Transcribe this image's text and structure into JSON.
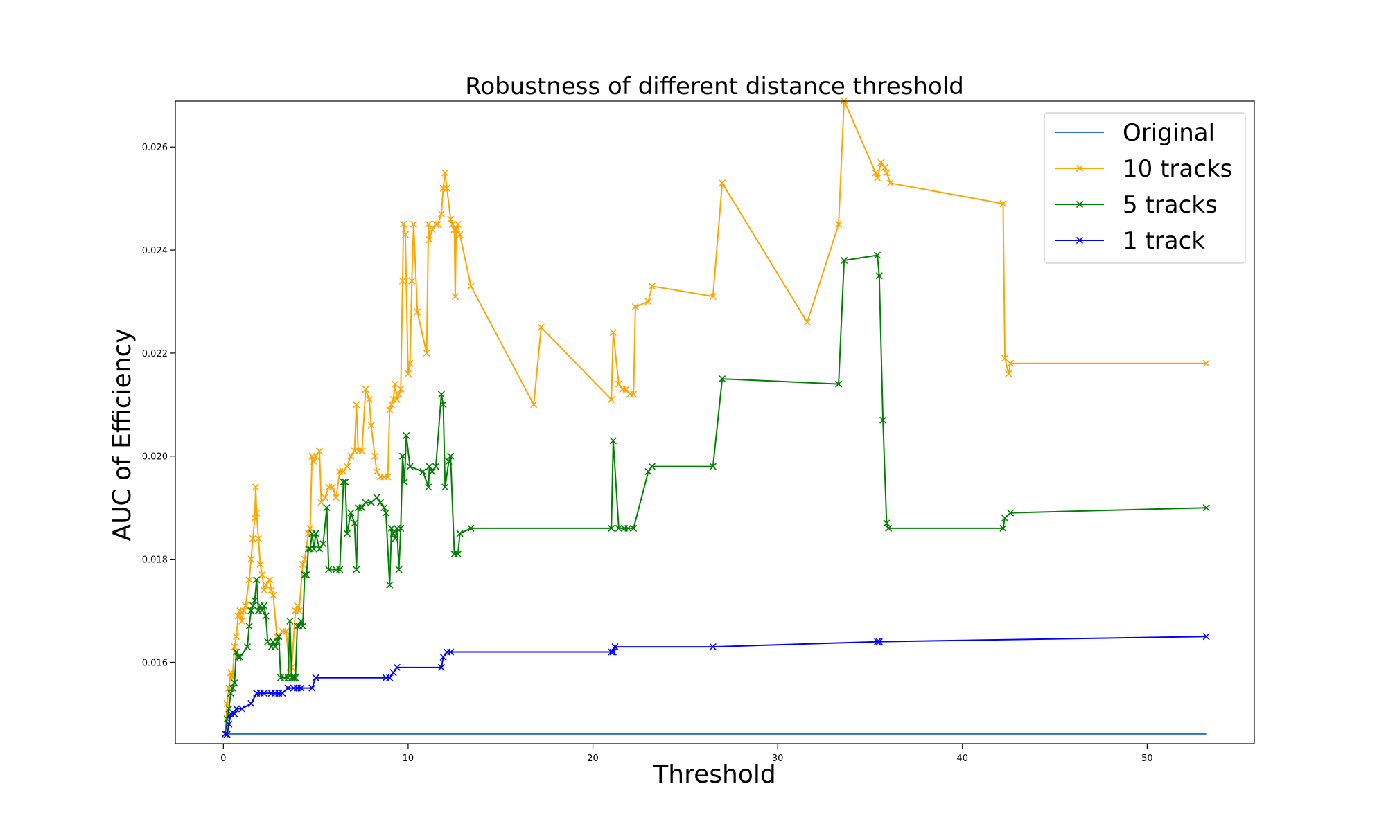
{
  "chart_data": {
    "type": "line",
    "title": "Robustness of different distance threshold",
    "xlabel": "Threshold",
    "ylabel": "AUC of Efficiency",
    "xlim": [
      -2.6,
      55.8
    ],
    "ylim": [
      0.01442,
      0.02689
    ],
    "xticks": [
      0,
      10,
      20,
      30,
      40,
      50
    ],
    "yticks": [
      0.016,
      0.018,
      0.02,
      0.022,
      0.024,
      0.026
    ],
    "xtick_labels": [
      "0",
      "10",
      "20",
      "30",
      "40",
      "50"
    ],
    "ytick_labels": [
      "0.016",
      "0.018",
      "0.020",
      "0.022",
      "0.024",
      "0.026"
    ],
    "grid": false,
    "legend_position": "top-right",
    "series": [
      {
        "name": "Original",
        "color": "#1f77b4",
        "marker": "none",
        "points": [
          [
            0.1,
            0.01461
          ],
          [
            53.2,
            0.01461
          ]
        ]
      },
      {
        "name": "10 tracks",
        "color": "#ffa500",
        "marker": "x",
        "points": [
          [
            0.1,
            0.01461
          ],
          [
            0.2,
            0.0152
          ],
          [
            0.3,
            0.0155
          ],
          [
            0.4,
            0.0158
          ],
          [
            0.5,
            0.0157
          ],
          [
            0.6,
            0.0163
          ],
          [
            0.7,
            0.0165
          ],
          [
            0.8,
            0.0169
          ],
          [
            0.9,
            0.017
          ],
          [
            1.0,
            0.0168
          ],
          [
            1.1,
            0.017
          ],
          [
            1.2,
            0.0171
          ],
          [
            1.4,
            0.0176
          ],
          [
            1.5,
            0.018
          ],
          [
            1.6,
            0.0184
          ],
          [
            1.7,
            0.0188
          ],
          [
            1.75,
            0.0194
          ],
          [
            1.8,
            0.0189
          ],
          [
            1.9,
            0.0184
          ],
          [
            2.0,
            0.0179
          ],
          [
            2.1,
            0.0177
          ],
          [
            2.2,
            0.0174
          ],
          [
            2.3,
            0.0175
          ],
          [
            2.5,
            0.0176
          ],
          [
            2.6,
            0.0174
          ],
          [
            2.7,
            0.0173
          ],
          [
            2.9,
            0.0165
          ],
          [
            3.0,
            0.0165
          ],
          [
            3.2,
            0.0166
          ],
          [
            3.4,
            0.0166
          ],
          [
            3.6,
            0.0158
          ],
          [
            3.7,
            0.0159
          ],
          [
            3.9,
            0.017
          ],
          [
            4.0,
            0.0171
          ],
          [
            4.1,
            0.017
          ],
          [
            4.3,
            0.0179
          ],
          [
            4.4,
            0.018
          ],
          [
            4.6,
            0.0185
          ],
          [
            4.7,
            0.0186
          ],
          [
            4.8,
            0.02
          ],
          [
            4.9,
            0.0199
          ],
          [
            5.0,
            0.02
          ],
          [
            5.2,
            0.0201
          ],
          [
            5.3,
            0.0191
          ],
          [
            5.5,
            0.0192
          ],
          [
            5.7,
            0.0194
          ],
          [
            5.9,
            0.0194
          ],
          [
            6.1,
            0.0192
          ],
          [
            6.3,
            0.0197
          ],
          [
            6.5,
            0.0197
          ],
          [
            6.7,
            0.0198
          ],
          [
            6.9,
            0.02
          ],
          [
            7.1,
            0.0201
          ],
          [
            7.2,
            0.021
          ],
          [
            7.3,
            0.0201
          ],
          [
            7.5,
            0.0201
          ],
          [
            7.7,
            0.0213
          ],
          [
            7.9,
            0.0211
          ],
          [
            8.0,
            0.0206
          ],
          [
            8.2,
            0.02
          ],
          [
            8.3,
            0.0197
          ],
          [
            8.5,
            0.0196
          ],
          [
            8.7,
            0.0196
          ],
          [
            8.9,
            0.0196
          ],
          [
            9.0,
            0.0209
          ],
          [
            9.1,
            0.021
          ],
          [
            9.2,
            0.0211
          ],
          [
            9.3,
            0.0214
          ],
          [
            9.4,
            0.0211
          ],
          [
            9.5,
            0.0212
          ],
          [
            9.6,
            0.0213
          ],
          [
            9.7,
            0.0234
          ],
          [
            9.75,
            0.0245
          ],
          [
            9.85,
            0.0243
          ],
          [
            10.0,
            0.0216
          ],
          [
            10.1,
            0.0218
          ],
          [
            10.2,
            0.0234
          ],
          [
            10.3,
            0.0245
          ],
          [
            10.5,
            0.0228
          ],
          [
            11.0,
            0.022
          ],
          [
            11.1,
            0.0245
          ],
          [
            11.15,
            0.0242
          ],
          [
            11.3,
            0.0244
          ],
          [
            11.5,
            0.0245
          ],
          [
            11.6,
            0.0245
          ],
          [
            11.8,
            0.0247
          ],
          [
            11.9,
            0.0252
          ],
          [
            12.0,
            0.0255
          ],
          [
            12.1,
            0.0252
          ],
          [
            12.3,
            0.0246
          ],
          [
            12.4,
            0.0245
          ],
          [
            12.5,
            0.0244
          ],
          [
            12.55,
            0.0231
          ],
          [
            12.6,
            0.0244
          ],
          [
            12.7,
            0.0245
          ],
          [
            12.8,
            0.0243
          ],
          [
            13.4,
            0.0233
          ],
          [
            16.8,
            0.021
          ],
          [
            17.2,
            0.0225
          ],
          [
            21.0,
            0.0211
          ],
          [
            21.1,
            0.0224
          ],
          [
            21.4,
            0.0214
          ],
          [
            21.6,
            0.0213
          ],
          [
            21.8,
            0.0213
          ],
          [
            22.0,
            0.0212
          ],
          [
            22.2,
            0.0212
          ],
          [
            22.3,
            0.0229
          ],
          [
            23.0,
            0.023
          ],
          [
            23.2,
            0.0233
          ],
          [
            26.5,
            0.0231
          ],
          [
            27.0,
            0.0253
          ],
          [
            31.6,
            0.0226
          ],
          [
            33.3,
            0.0245
          ],
          [
            33.6,
            0.0269
          ],
          [
            35.3,
            0.0255
          ],
          [
            35.4,
            0.0254
          ],
          [
            35.6,
            0.0257
          ],
          [
            35.8,
            0.0256
          ],
          [
            35.9,
            0.0255
          ],
          [
            36.1,
            0.0253
          ],
          [
            42.2,
            0.0249
          ],
          [
            42.3,
            0.0219
          ],
          [
            42.5,
            0.0216
          ],
          [
            42.6,
            0.0218
          ],
          [
            53.2,
            0.0218
          ]
        ]
      },
      {
        "name": "5 tracks",
        "color": "#008000",
        "marker": "x",
        "points": [
          [
            0.1,
            0.01461
          ],
          [
            0.2,
            0.0149
          ],
          [
            0.3,
            0.0151
          ],
          [
            0.4,
            0.0154
          ],
          [
            0.5,
            0.0155
          ],
          [
            0.6,
            0.0156
          ],
          [
            0.7,
            0.0162
          ],
          [
            0.8,
            0.0161
          ],
          [
            0.9,
            0.0161
          ],
          [
            1.3,
            0.0163
          ],
          [
            1.4,
            0.0167
          ],
          [
            1.5,
            0.017
          ],
          [
            1.6,
            0.0171
          ],
          [
            1.7,
            0.0172
          ],
          [
            1.8,
            0.0176
          ],
          [
            1.9,
            0.017
          ],
          [
            2.0,
            0.0171
          ],
          [
            2.1,
            0.017
          ],
          [
            2.2,
            0.0171
          ],
          [
            2.3,
            0.0169
          ],
          [
            2.4,
            0.0164
          ],
          [
            2.6,
            0.0163
          ],
          [
            2.7,
            0.0164
          ],
          [
            2.8,
            0.0163
          ],
          [
            2.9,
            0.0164
          ],
          [
            3.0,
            0.0165
          ],
          [
            3.1,
            0.0157
          ],
          [
            3.3,
            0.0157
          ],
          [
            3.5,
            0.0157
          ],
          [
            3.6,
            0.0168
          ],
          [
            3.7,
            0.0157
          ],
          [
            3.8,
            0.0157
          ],
          [
            3.9,
            0.0157
          ],
          [
            4.0,
            0.0167
          ],
          [
            4.1,
            0.0167
          ],
          [
            4.2,
            0.0168
          ],
          [
            4.3,
            0.0167
          ],
          [
            4.4,
            0.0177
          ],
          [
            4.5,
            0.0177
          ],
          [
            4.6,
            0.0182
          ],
          [
            4.7,
            0.0182
          ],
          [
            4.8,
            0.0185
          ],
          [
            4.9,
            0.0182
          ],
          [
            5.0,
            0.0185
          ],
          [
            5.2,
            0.0182
          ],
          [
            5.4,
            0.0183
          ],
          [
            5.6,
            0.019
          ],
          [
            5.7,
            0.0178
          ],
          [
            6.1,
            0.0178
          ],
          [
            6.3,
            0.0178
          ],
          [
            6.5,
            0.0195
          ],
          [
            6.6,
            0.0195
          ],
          [
            6.7,
            0.0185
          ],
          [
            6.9,
            0.0189
          ],
          [
            7.1,
            0.0187
          ],
          [
            7.2,
            0.0178
          ],
          [
            7.3,
            0.019
          ],
          [
            7.5,
            0.019
          ],
          [
            7.7,
            0.0191
          ],
          [
            8.0,
            0.0191
          ],
          [
            8.3,
            0.0192
          ],
          [
            8.5,
            0.0191
          ],
          [
            8.7,
            0.019
          ],
          [
            8.8,
            0.0189
          ],
          [
            9.0,
            0.0175
          ],
          [
            9.1,
            0.0186
          ],
          [
            9.2,
            0.0185
          ],
          [
            9.3,
            0.0184
          ],
          [
            9.4,
            0.0186
          ],
          [
            9.5,
            0.0178
          ],
          [
            9.6,
            0.0186
          ],
          [
            9.7,
            0.02
          ],
          [
            9.8,
            0.0195
          ],
          [
            9.9,
            0.0204
          ],
          [
            10.1,
            0.0198
          ],
          [
            10.8,
            0.0197
          ],
          [
            11.1,
            0.0194
          ],
          [
            11.15,
            0.0198
          ],
          [
            11.3,
            0.0197
          ],
          [
            11.5,
            0.0198
          ],
          [
            11.8,
            0.0212
          ],
          [
            11.9,
            0.021
          ],
          [
            12.0,
            0.0194
          ],
          [
            12.2,
            0.0199
          ],
          [
            12.3,
            0.02
          ],
          [
            12.5,
            0.0181
          ],
          [
            12.7,
            0.0181
          ],
          [
            12.8,
            0.0185
          ],
          [
            13.4,
            0.0186
          ],
          [
            21.0,
            0.0186
          ],
          [
            21.1,
            0.0203
          ],
          [
            21.4,
            0.0186
          ],
          [
            21.7,
            0.0186
          ],
          [
            21.9,
            0.0186
          ],
          [
            22.2,
            0.0186
          ],
          [
            23.0,
            0.0197
          ],
          [
            23.2,
            0.0198
          ],
          [
            26.5,
            0.0198
          ],
          [
            27.0,
            0.0215
          ],
          [
            33.3,
            0.0214
          ],
          [
            33.6,
            0.0238
          ],
          [
            35.4,
            0.0239
          ],
          [
            35.5,
            0.0235
          ],
          [
            35.7,
            0.0207
          ],
          [
            35.9,
            0.0187
          ],
          [
            36.0,
            0.0186
          ],
          [
            42.2,
            0.0186
          ],
          [
            42.3,
            0.0188
          ],
          [
            42.6,
            0.0189
          ],
          [
            53.2,
            0.019
          ]
        ]
      },
      {
        "name": "1 track",
        "color": "#0000ff",
        "marker": "x",
        "points": [
          [
            0.1,
            0.01461
          ],
          [
            0.2,
            0.0146
          ],
          [
            0.3,
            0.0148
          ],
          [
            0.4,
            0.015
          ],
          [
            0.6,
            0.015
          ],
          [
            0.7,
            0.0151
          ],
          [
            1.0,
            0.0151
          ],
          [
            1.5,
            0.0152
          ],
          [
            1.8,
            0.0154
          ],
          [
            2.0,
            0.0154
          ],
          [
            2.2,
            0.0154
          ],
          [
            2.6,
            0.0154
          ],
          [
            2.8,
            0.0154
          ],
          [
            3.0,
            0.0154
          ],
          [
            3.2,
            0.0154
          ],
          [
            3.5,
            0.0155
          ],
          [
            3.8,
            0.0155
          ],
          [
            4.0,
            0.0155
          ],
          [
            4.2,
            0.0155
          ],
          [
            4.8,
            0.0155
          ],
          [
            5.0,
            0.0157
          ],
          [
            8.8,
            0.0157
          ],
          [
            9.0,
            0.0157
          ],
          [
            9.2,
            0.0158
          ],
          [
            9.4,
            0.0159
          ],
          [
            11.8,
            0.0159
          ],
          [
            11.9,
            0.0161
          ],
          [
            12.1,
            0.0162
          ],
          [
            12.3,
            0.0162
          ],
          [
            21.0,
            0.0162
          ],
          [
            21.1,
            0.0162
          ],
          [
            21.2,
            0.0163
          ],
          [
            26.5,
            0.0163
          ],
          [
            35.4,
            0.0164
          ],
          [
            35.5,
            0.0164
          ],
          [
            53.2,
            0.0165
          ]
        ]
      }
    ]
  }
}
